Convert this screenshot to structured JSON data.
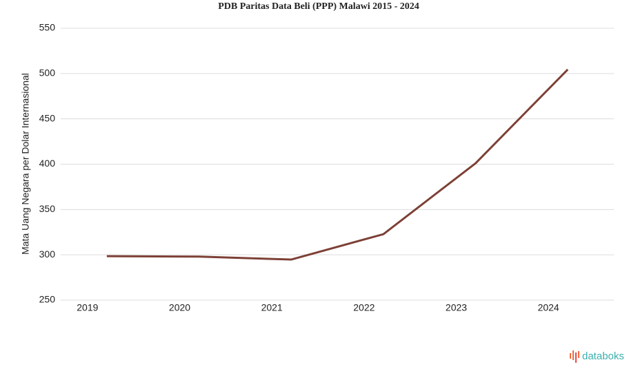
{
  "chart_data": {
    "type": "line",
    "title": "PDB Paritas Data Beli (PPP) Malawi 2015 - 2024",
    "y_label": "Mata Uang Negara per Dolar Internasional",
    "categories": [
      "2019",
      "2020",
      "2021",
      "2022",
      "2023",
      "2024"
    ],
    "series": [
      {
        "name": "Malawi",
        "color": "#7d4036",
        "values": [
          298.5,
          298,
          294.8,
          322.8,
          401,
          504.5
        ]
      }
    ],
    "ylim": [
      250,
      550
    ],
    "yticks": [
      250,
      300,
      350,
      400,
      450,
      500,
      550
    ],
    "grid": true,
    "legend": false
  },
  "brand": "databoks"
}
